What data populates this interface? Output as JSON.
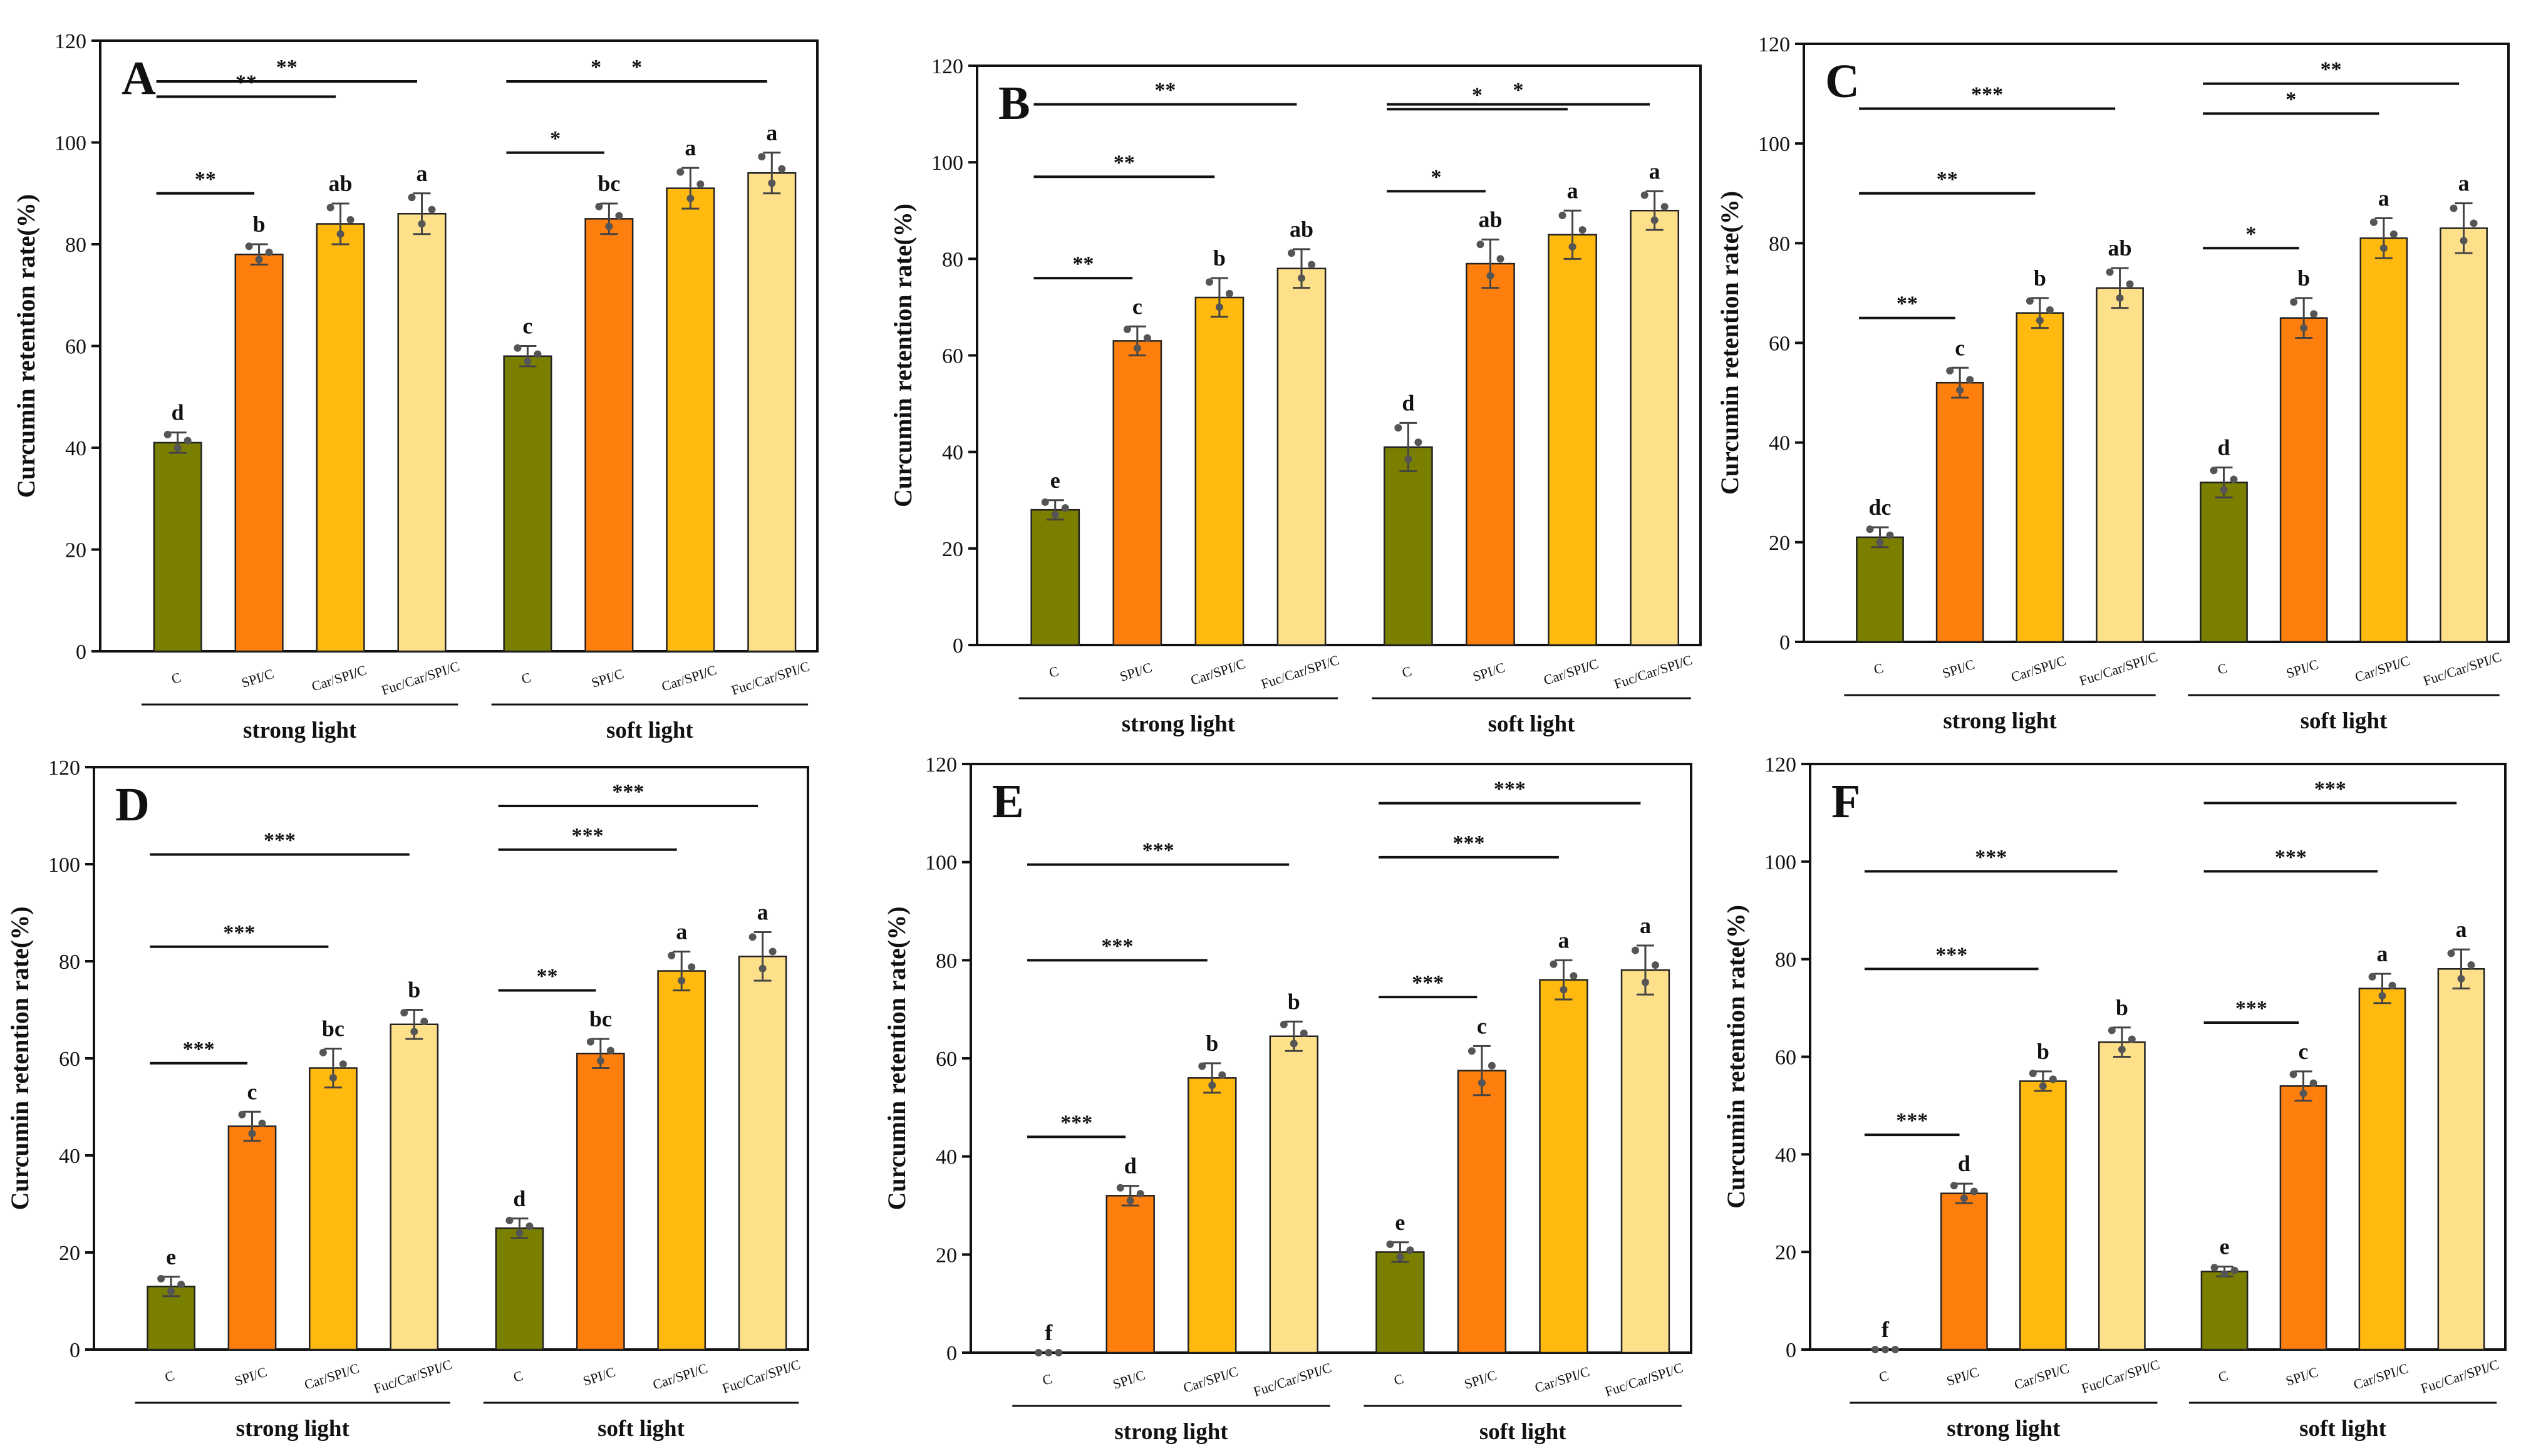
{
  "figure": {
    "groups": [
      "strong light",
      "soft light"
    ],
    "categories": [
      "C",
      "SPI/C",
      "Car/SPI/C",
      "Fuc/Car/SPI/C"
    ],
    "colors": {
      "C": "#7a7f00",
      "SPI/C": "#ff7f0e",
      "Car/SPI/C": "#ffb90f",
      "Fuc/Car/SPI/C": "#ffe08a"
    }
  },
  "chart_data": [
    {
      "panel": "A",
      "type": "bar",
      "ylabel": "Curcumin retention rate(%)",
      "ylim": [
        0,
        120
      ],
      "yticks": [
        "0",
        "20",
        "40",
        "60",
        "80",
        "100",
        "120"
      ],
      "groups": [
        "strong light",
        "soft light"
      ],
      "categories": [
        "C",
        "SPI/C",
        "Car/SPI/C",
        "Fuc/Car/SPI/C"
      ],
      "series": [
        {
          "name": "strong light",
          "values": [
            41,
            78,
            84,
            86
          ],
          "errors": [
            2,
            2,
            4,
            4
          ],
          "letters": [
            "d",
            "b",
            "ab",
            "a"
          ]
        },
        {
          "name": "soft light",
          "values": [
            58,
            85,
            91,
            94
          ],
          "errors": [
            2,
            3,
            4,
            4
          ],
          "letters": [
            "c",
            "bc",
            "a",
            "a"
          ]
        }
      ],
      "significance": [
        {
          "group": 0,
          "to": 1,
          "label": "**"
        },
        {
          "group": 0,
          "to": 2,
          "label": "**"
        },
        {
          "group": 0,
          "to": 3,
          "label": "**"
        },
        {
          "group": 1,
          "to": 1,
          "label": "*"
        },
        {
          "group": 1,
          "to": 2,
          "label": "*"
        },
        {
          "group": 1,
          "to": 3,
          "label": "*"
        }
      ]
    },
    {
      "panel": "B",
      "type": "bar",
      "ylabel": "Curcumin retention rate(%)",
      "ylim": [
        0,
        120
      ],
      "yticks": [
        "0",
        "20",
        "40",
        "60",
        "80",
        "100",
        "120"
      ],
      "groups": [
        "strong light",
        "soft light"
      ],
      "categories": [
        "C",
        "SPI/C",
        "Car/SPI/C",
        "Fuc/Car/SPI/C"
      ],
      "series": [
        {
          "name": "strong light",
          "values": [
            28,
            63,
            72,
            78
          ],
          "errors": [
            2,
            3,
            4,
            4
          ],
          "letters": [
            "e",
            "c",
            "b",
            "ab"
          ]
        },
        {
          "name": "soft light",
          "values": [
            41,
            79,
            85,
            90
          ],
          "errors": [
            5,
            5,
            5,
            4
          ],
          "letters": [
            "d",
            "ab",
            "a",
            "a"
          ]
        }
      ],
      "significance": [
        {
          "group": 0,
          "to": 1,
          "label": "**"
        },
        {
          "group": 0,
          "to": 2,
          "label": "**"
        },
        {
          "group": 0,
          "to": 3,
          "label": "**"
        },
        {
          "group": 1,
          "to": 1,
          "label": "*"
        },
        {
          "group": 1,
          "to": 2,
          "label": "*"
        },
        {
          "group": 1,
          "to": 3,
          "label": "*"
        }
      ]
    },
    {
      "panel": "C",
      "type": "bar",
      "ylabel": "Curcumin retention rate(%)",
      "ylim": [
        0,
        120
      ],
      "yticks": [
        "0",
        "20",
        "40",
        "60",
        "80",
        "100",
        "120"
      ],
      "groups": [
        "strong light",
        "soft light"
      ],
      "categories": [
        "C",
        "SPI/C",
        "Car/SPI/C",
        "Fuc/Car/SPI/C"
      ],
      "series": [
        {
          "name": "strong light",
          "values": [
            21,
            52,
            66,
            71
          ],
          "errors": [
            2,
            3,
            3,
            4
          ],
          "letters": [
            "dc",
            "c",
            "b",
            "ab"
          ]
        },
        {
          "name": "soft light",
          "values": [
            32,
            65,
            81,
            83
          ],
          "errors": [
            3,
            4,
            4,
            5
          ],
          "letters": [
            "d",
            "b",
            "a",
            "a"
          ]
        }
      ],
      "significance": [
        {
          "group": 0,
          "to": 1,
          "label": "**"
        },
        {
          "group": 0,
          "to": 2,
          "label": "**"
        },
        {
          "group": 0,
          "to": 3,
          "label": "***"
        },
        {
          "group": 1,
          "to": 1,
          "label": "*"
        },
        {
          "group": 1,
          "to": 2,
          "label": "*"
        },
        {
          "group": 1,
          "to": 3,
          "label": "**"
        }
      ]
    },
    {
      "panel": "D",
      "type": "bar",
      "ylabel": "Curcumin retention rate(%)",
      "ylim": [
        0,
        120
      ],
      "yticks": [
        "0",
        "20",
        "40",
        "60",
        "80",
        "100",
        "120"
      ],
      "groups": [
        "strong light",
        "soft light"
      ],
      "categories": [
        "C",
        "SPI/C",
        "Car/SPI/C",
        "Fuc/Car/SPI/C"
      ],
      "series": [
        {
          "name": "strong light",
          "values": [
            13,
            46,
            58,
            67
          ],
          "errors": [
            2,
            3,
            4,
            3
          ],
          "letters": [
            "e",
            "c",
            "bc",
            "b"
          ]
        },
        {
          "name": "soft light",
          "values": [
            25,
            61,
            78,
            81
          ],
          "errors": [
            2,
            3,
            4,
            5
          ],
          "letters": [
            "d",
            "bc",
            "a",
            "a"
          ]
        }
      ],
      "significance": [
        {
          "group": 0,
          "to": 1,
          "label": "***"
        },
        {
          "group": 0,
          "to": 2,
          "label": "***"
        },
        {
          "group": 0,
          "to": 3,
          "label": "***"
        },
        {
          "group": 1,
          "to": 1,
          "label": "**"
        },
        {
          "group": 1,
          "to": 2,
          "label": "***"
        },
        {
          "group": 1,
          "to": 3,
          "label": "***"
        }
      ]
    },
    {
      "panel": "E",
      "type": "bar",
      "ylabel": "Curcumin retention rate(%)",
      "ylim": [
        0,
        120
      ],
      "yticks": [
        "0",
        "20",
        "40",
        "60",
        "80",
        "100",
        "120"
      ],
      "groups": [
        "strong light",
        "soft light"
      ],
      "categories": [
        "C",
        "SPI/C",
        "Car/SPI/C",
        "Fuc/Car/SPI/C"
      ],
      "series": [
        {
          "name": "strong light",
          "values": [
            0,
            32,
            56,
            64.5
          ],
          "errors": [
            0,
            2,
            3,
            3
          ],
          "letters": [
            "f",
            "d",
            "b",
            "b"
          ]
        },
        {
          "name": "soft light",
          "values": [
            20.5,
            57.5,
            76,
            78
          ],
          "errors": [
            2,
            5,
            4,
            5
          ],
          "letters": [
            "e",
            "c",
            "a",
            "a"
          ]
        }
      ],
      "significance": [
        {
          "group": 0,
          "to": 1,
          "label": "***"
        },
        {
          "group": 0,
          "to": 2,
          "label": "***"
        },
        {
          "group": 0,
          "to": 3,
          "label": "***"
        },
        {
          "group": 1,
          "to": 1,
          "label": "***"
        },
        {
          "group": 1,
          "to": 2,
          "label": "***"
        },
        {
          "group": 1,
          "to": 3,
          "label": "***"
        }
      ]
    },
    {
      "panel": "F",
      "type": "bar",
      "ylabel": "Curcumin retention rate(%)",
      "ylim": [
        0,
        120
      ],
      "yticks": [
        "0",
        "20",
        "40",
        "60",
        "80",
        "100",
        "120"
      ],
      "groups": [
        "strong light",
        "soft light"
      ],
      "categories": [
        "C",
        "SPI/C",
        "Car/SPI/C",
        "Fuc/Car/SPI/C"
      ],
      "series": [
        {
          "name": "strong light",
          "values": [
            0,
            32,
            55,
            63
          ],
          "errors": [
            0,
            2,
            2,
            3
          ],
          "letters": [
            "f",
            "d",
            "b",
            "b"
          ]
        },
        {
          "name": "soft light",
          "values": [
            16,
            54,
            74,
            78
          ],
          "errors": [
            1,
            3,
            3,
            4
          ],
          "letters": [
            "e",
            "c",
            "a",
            "a"
          ]
        }
      ],
      "significance": [
        {
          "group": 0,
          "to": 1,
          "label": "***"
        },
        {
          "group": 0,
          "to": 2,
          "label": "***"
        },
        {
          "group": 0,
          "to": 3,
          "label": "***"
        },
        {
          "group": 1,
          "to": 1,
          "label": "***"
        },
        {
          "group": 1,
          "to": 2,
          "label": "***"
        },
        {
          "group": 1,
          "to": 3,
          "label": "***"
        }
      ]
    }
  ]
}
